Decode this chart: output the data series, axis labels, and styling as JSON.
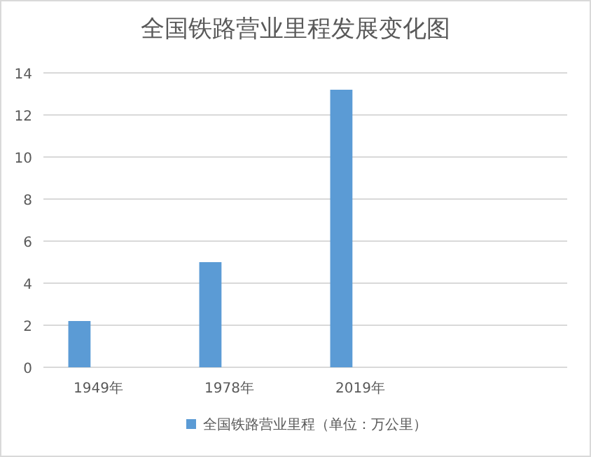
{
  "chart_data": {
    "type": "bar",
    "title": "全国铁路营业里程发展变化图",
    "categories": [
      "1949年",
      "1978年",
      "2019年",
      null
    ],
    "series": [
      {
        "name": "全国铁路营业里程（单位：万公里）",
        "color": "#5b9bd5",
        "values": [
          2.2,
          5.0,
          13.2,
          null
        ]
      }
    ],
    "ylim": [
      0,
      14
    ],
    "yticks": [
      0,
      2,
      4,
      6,
      8,
      10,
      12,
      14
    ],
    "grid": "y",
    "legend": "bottom"
  }
}
